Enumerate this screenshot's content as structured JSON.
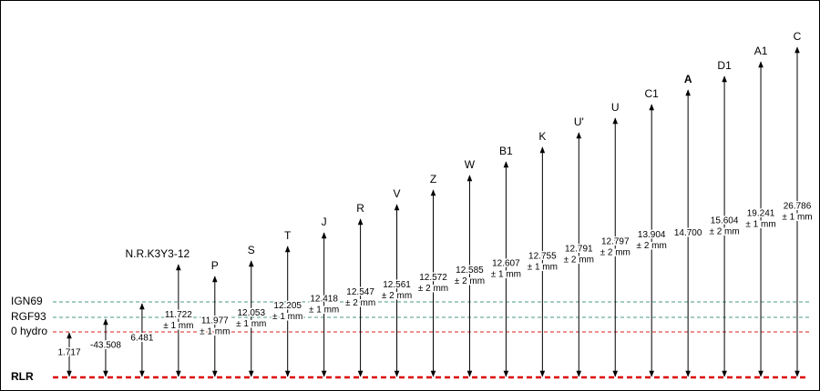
{
  "reference_levels": [
    {
      "label": "IGN69"
    },
    {
      "label": "RGF93"
    },
    {
      "label": "0 hydro"
    },
    {
      "label": "RLR"
    }
  ],
  "markers": [
    {
      "value": "1.717"
    },
    {
      "value": "-43.508"
    },
    {
      "value": "6.481"
    },
    {
      "label": "N.R.K3Y3-12",
      "value": "11.722",
      "tolerance": "± 1 mm"
    },
    {
      "label": "P",
      "value": "11.977",
      "tolerance": "± 1 mm"
    },
    {
      "label": "S",
      "value": "12.053",
      "tolerance": "± 1 mm"
    },
    {
      "label": "T",
      "value": "12.205",
      "tolerance": "± 1 mm"
    },
    {
      "label": "J",
      "value": "12.418",
      "tolerance": "± 1 mm"
    },
    {
      "label": "R",
      "value": "12.547",
      "tolerance": "± 2 mm"
    },
    {
      "label": "V",
      "value": "12.561",
      "tolerance": "± 2 mm"
    },
    {
      "label": "Z",
      "value": "12.572",
      "tolerance": "± 2 mm"
    },
    {
      "label": "W",
      "value": "12.585",
      "tolerance": "± 2 mm"
    },
    {
      "label": "B1",
      "value": "12.607",
      "tolerance": "± 1 mm"
    },
    {
      "label": "K",
      "value": "12.755",
      "tolerance": "± 1 mm"
    },
    {
      "label": "U'",
      "value": "12.791",
      "tolerance": "± 2 mm"
    },
    {
      "label": "U",
      "value": "12.797",
      "tolerance": "± 2 mm"
    },
    {
      "label": "C1",
      "value": "13.904",
      "tolerance": "± 2 mm"
    },
    {
      "label": "A",
      "value": "14.700"
    },
    {
      "label": "D1",
      "value": "15.604",
      "tolerance": "± 2 mm"
    },
    {
      "label": "A1",
      "value": "19.241",
      "tolerance": "± 1 mm"
    },
    {
      "label": "C",
      "value": "26.786",
      "tolerance": "± 1 mm"
    }
  ]
}
